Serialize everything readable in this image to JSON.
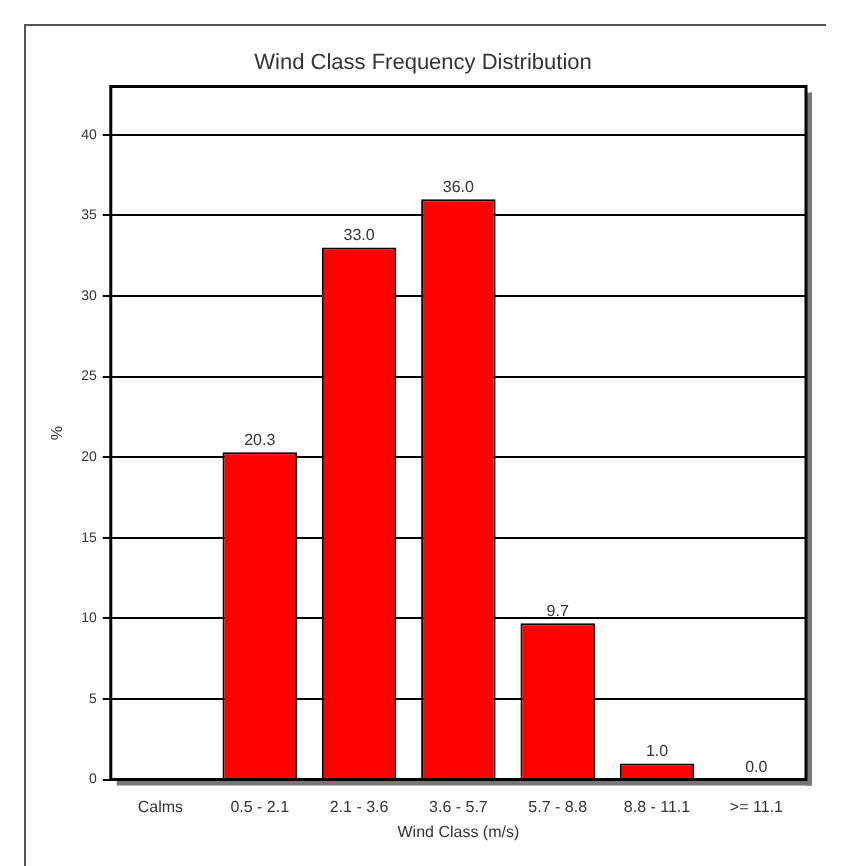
{
  "chart_data": {
    "type": "bar",
    "title": "Wind Class Frequency Distribution",
    "xlabel": "Wind Class (m/s)",
    "ylabel": "%",
    "categories": [
      "Calms",
      "0.5 - 2.1",
      "2.1 - 3.6",
      "3.6 - 5.7",
      "5.7 - 8.8",
      "8.8 - 11.1",
      ">= 11.1"
    ],
    "values": [
      null,
      20.3,
      33.0,
      36.0,
      9.7,
      1.0,
      0.0
    ],
    "value_labels": [
      null,
      "20.3",
      "33.0",
      "36.0",
      "9.7",
      "1.0",
      "0.0"
    ],
    "color": "#ff0000",
    "ylim": [
      0,
      43
    ],
    "yticks": [
      0,
      5,
      10,
      15,
      20,
      25,
      30,
      35,
      40
    ],
    "grid": "y",
    "legend": false
  }
}
